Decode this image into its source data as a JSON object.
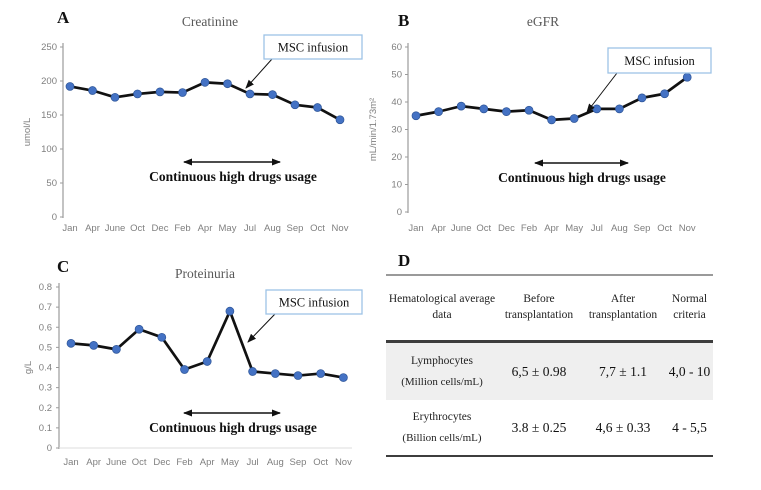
{
  "panels": {
    "a": {
      "letter": "A"
    },
    "b": {
      "letter": "B"
    },
    "c": {
      "letter": "C"
    },
    "d": {
      "letter": "D"
    }
  },
  "annotations": {
    "msc_label": "MSC infusion",
    "drugs_label": "Continuous high drugs usage"
  },
  "colors": {
    "marker_blue": "#4472c4",
    "line_black": "#111111",
    "callout_border": "#9dc3e6",
    "axis_gray": "#9b9b9b",
    "tick_text_gray": "#7f7f7f",
    "title_gray": "#595959"
  },
  "chart_data": [
    {
      "panel": "A",
      "type": "line",
      "title": "Creatinine",
      "ylabel": "umol/L",
      "categories": [
        "Jan",
        "Apr",
        "June",
        "Oct",
        "Dec",
        "Feb",
        "Apr",
        "May",
        "Jul",
        "Aug",
        "Sep",
        "Oct",
        "Nov"
      ],
      "values": [
        192,
        186,
        176,
        181,
        184,
        183,
        198,
        196,
        181,
        180,
        165,
        161,
        143
      ],
      "ylim": [
        0,
        250
      ],
      "ytick_labels": [
        "0",
        "50",
        "100",
        "150",
        "200",
        "250"
      ],
      "grid": false,
      "annotations": [
        "MSC infusion",
        "Continuous high drugs usage"
      ]
    },
    {
      "panel": "B",
      "type": "line",
      "title": "eGFR",
      "ylabel": "mL/min/1.73m²",
      "categories": [
        "Jan",
        "Apr",
        "June",
        "Oct",
        "Dec",
        "Feb",
        "Apr",
        "May",
        "Jul",
        "Aug",
        "Sep",
        "Oct",
        "Nov"
      ],
      "values": [
        35,
        36.5,
        38.5,
        37.5,
        36.5,
        37,
        33.5,
        34,
        37.5,
        37.5,
        41.5,
        43,
        49
      ],
      "ylim": [
        0,
        60
      ],
      "ytick_labels": [
        "0",
        "10",
        "20",
        "30",
        "40",
        "50",
        "60"
      ],
      "grid": false,
      "annotations": [
        "MSC infusion",
        "Continuous high drugs usage"
      ]
    },
    {
      "panel": "C",
      "type": "line",
      "title": "Proteinuria",
      "ylabel": "g/L",
      "categories": [
        "Jan",
        "Apr",
        "June",
        "Oct",
        "Dec",
        "Feb",
        "Apr",
        "May",
        "Jul",
        "Aug",
        "Sep",
        "Oct",
        "Nov"
      ],
      "values": [
        0.52,
        0.51,
        0.49,
        0.59,
        0.55,
        0.39,
        0.43,
        0.68,
        0.38,
        0.37,
        0.36,
        0.37,
        0.35
      ],
      "ylim": [
        0,
        0.8
      ],
      "ytick_labels": [
        "0",
        "0.1",
        "0.2",
        "0.3",
        "0.4",
        "0.5",
        "0.6",
        "0.7",
        "0.8"
      ],
      "grid": false,
      "annotations": [
        "MSC infusion",
        "Continuous high drugs usage"
      ]
    }
  ],
  "table": {
    "headers": [
      "Hematological average data",
      "Before transplantation",
      "After transplantation",
      "Normal criteria"
    ],
    "rows": [
      {
        "name": "Lymphocytes",
        "unit": "(Million cells/mL)",
        "before": "6,5 ± 0.98",
        "after": "7,7 ± 1.1",
        "normal": "4,0 - 10"
      },
      {
        "name": "Erythrocytes",
        "unit": "(Billion cells/mL)",
        "before": "3.8 ± 0.25",
        "after": "4,6 ± 0.33",
        "normal": "4 - 5,5"
      }
    ]
  }
}
